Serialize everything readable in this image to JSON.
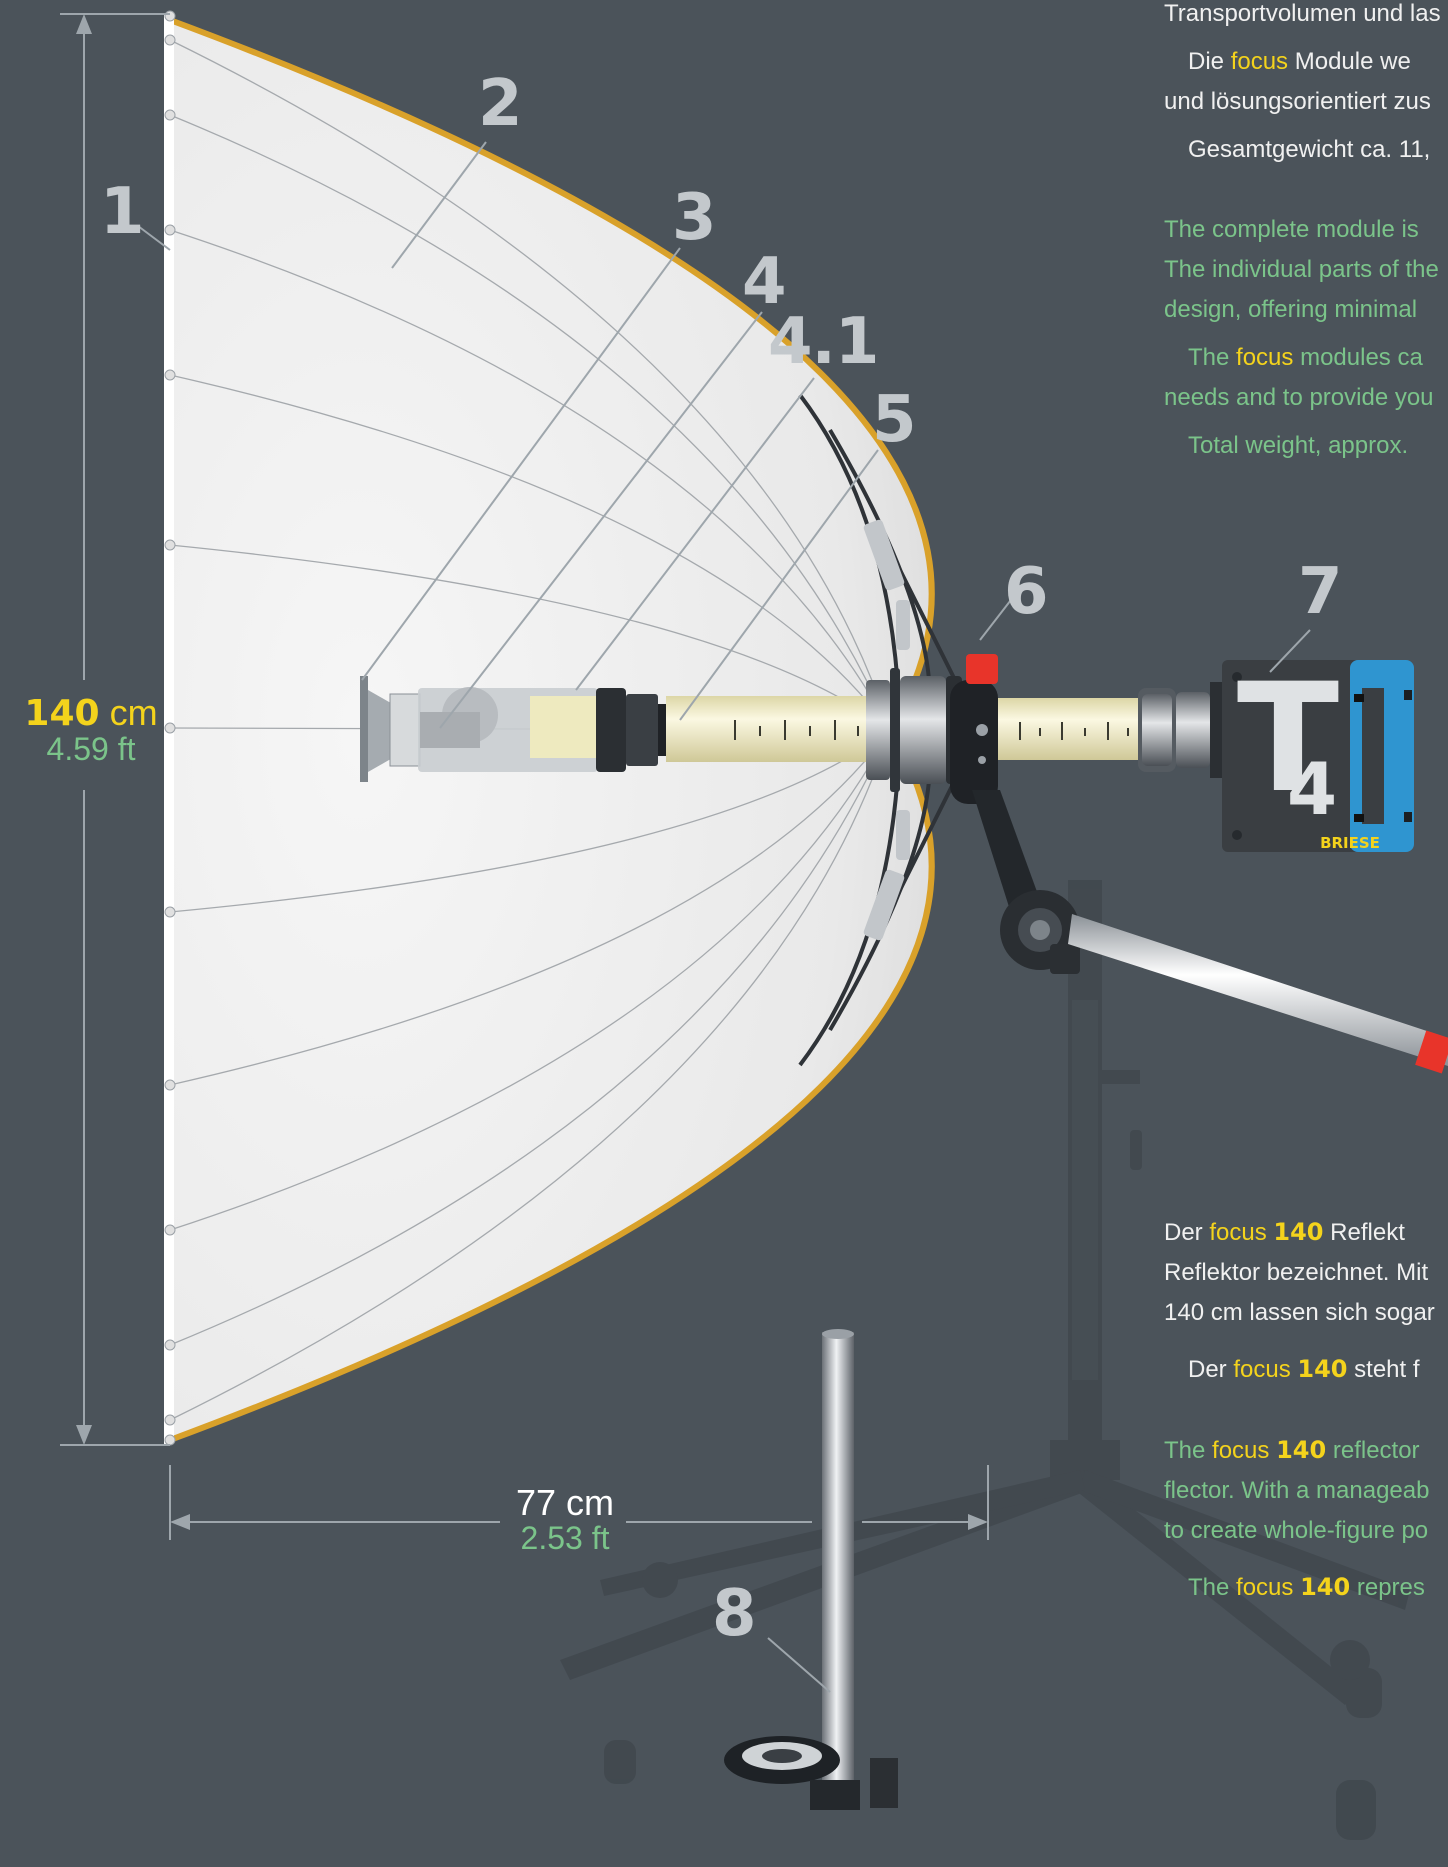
{
  "callouts": [
    "1",
    "2",
    "3",
    "4",
    "4.1",
    "5",
    "6",
    "7",
    "8"
  ],
  "dimensions": {
    "height": {
      "value": "140",
      "unit": "cm",
      "imperial": "4.59 ft"
    },
    "depth": {
      "value": "77",
      "unit": "cm",
      "imperial": "2.53 ft"
    }
  },
  "brand_word": "focus",
  "model_number": "140",
  "device": {
    "letter": "T",
    "digit": "4",
    "brand": "BRIESE"
  },
  "text_top": {
    "de_line_1": "Transportvolumen und las",
    "de_para_2_pre": "Die ",
    "de_para_2_post": " Module we",
    "de_line_2": "und lösungsorientiert zus",
    "de_weight": "Gesamtgewicht ca. 11,",
    "en_line_1": "The complete module is",
    "en_line_2": "The individual parts of the",
    "en_line_3": "design, offering minimal",
    "en_para_2_pre": "The ",
    "en_para_2_post": " modules ca",
    "en_line_4": "needs and to provide you",
    "en_weight": "Total weight, approx. "
  },
  "text_bottom": {
    "de_para_1_pre": "Der ",
    "de_para_1_post": " Reflekt",
    "de_line_2": "Reflektor bezeichnet. Mit",
    "de_line_3": "140 cm lassen sich sogar",
    "de_para_2_pre": "Der ",
    "de_para_2_post": " steht f",
    "en_para_1_pre": "The ",
    "en_para_1_post": " reflector",
    "en_line_2": "flector. With a manageab",
    "en_line_3": "to create whole-figure po",
    "en_para_2_pre": "The ",
    "en_para_2_post": " repres"
  },
  "colors": {
    "background": "#4b535a",
    "accent_yellow": "#f4d31c",
    "text_green": "#7bc48a",
    "reflector_rim": "#d9a12a",
    "handle_blue": "#2f95d0",
    "lock_red": "#e8342a",
    "callout_gray": "#c3c8cc",
    "tube_cream": "#f1ecc4"
  }
}
